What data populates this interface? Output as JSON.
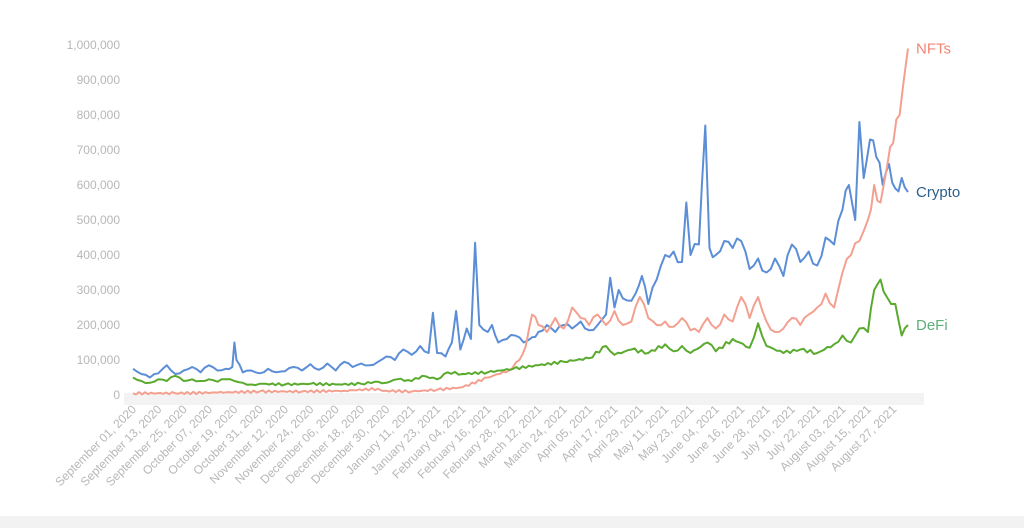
{
  "chart_data": {
    "type": "line",
    "title": "",
    "xlabel": "",
    "ylabel": "",
    "ylim": [
      0,
      1000000
    ],
    "yticks": [
      0,
      100000,
      200000,
      300000,
      400000,
      500000,
      600000,
      700000,
      800000,
      900000,
      1000000
    ],
    "ytick_labels": [
      "0",
      "100,000",
      "200,000",
      "300,000",
      "400,000",
      "500,000",
      "600,000",
      "700,000",
      "800,000",
      "900,000",
      "1,000,000"
    ],
    "x_start": "2020-09-01",
    "x_end": "2021-09-03",
    "x_tick_labels": [
      "September 01, 2020",
      "September 13, 2020",
      "September 25, 2020",
      "October 07, 2020",
      "October 19, 2020",
      "October 31, 2020",
      "November 12, 2020",
      "November 24, 2020",
      "December 06, 2020",
      "December 18, 2020",
      "December 30, 2020",
      "January 11, 2021",
      "January 23, 2021",
      "February 04, 2021",
      "February 16, 2021",
      "February 28, 2021",
      "March 12, 2021",
      "March 24, 2021",
      "April 05, 2021",
      "April 17, 2021",
      "April 29, 2021",
      "May 11, 2021",
      "May 23, 2021",
      "June 04, 2021",
      "June 16, 2021",
      "June 28, 2021",
      "July 10, 2021",
      "July 22, 2021",
      "August 03, 2021",
      "August 15, 2021",
      "August 27, 2021"
    ],
    "grid": false,
    "legend": "end-labels",
    "series": [
      {
        "name": "Crypto",
        "color": "#5b8ed6",
        "label_color": "#2c5f8a",
        "points": [
          [
            "2020-09-01",
            75000
          ],
          [
            "2020-09-05",
            60000
          ],
          [
            "2020-09-09",
            50000
          ],
          [
            "2020-09-13",
            62000
          ],
          [
            "2020-09-17",
            85000
          ],
          [
            "2020-09-21",
            60000
          ],
          [
            "2020-09-25",
            70000
          ],
          [
            "2020-09-29",
            80000
          ],
          [
            "2020-10-03",
            65000
          ],
          [
            "2020-10-07",
            85000
          ],
          [
            "2020-10-11",
            70000
          ],
          [
            "2020-10-15",
            75000
          ],
          [
            "2020-10-18",
            80000
          ],
          [
            "2020-10-19",
            150000
          ],
          [
            "2020-10-20",
            100000
          ],
          [
            "2020-10-23",
            65000
          ],
          [
            "2020-10-27",
            70000
          ],
          [
            "2020-10-31",
            62000
          ],
          [
            "2020-11-04",
            75000
          ],
          [
            "2020-11-08",
            65000
          ],
          [
            "2020-11-12",
            68000
          ],
          [
            "2020-11-16",
            80000
          ],
          [
            "2020-11-20",
            70000
          ],
          [
            "2020-11-24",
            88000
          ],
          [
            "2020-11-28",
            72000
          ],
          [
            "2020-12-02",
            90000
          ],
          [
            "2020-12-06",
            70000
          ],
          [
            "2020-12-10",
            95000
          ],
          [
            "2020-12-14",
            80000
          ],
          [
            "2020-12-18",
            90000
          ],
          [
            "2020-12-22",
            85000
          ],
          [
            "2020-12-26",
            95000
          ],
          [
            "2020-12-30",
            110000
          ],
          [
            "2021-01-03",
            100000
          ],
          [
            "2021-01-07",
            130000
          ],
          [
            "2021-01-11",
            115000
          ],
          [
            "2021-01-15",
            140000
          ],
          [
            "2021-01-19",
            120000
          ],
          [
            "2021-01-21",
            235000
          ],
          [
            "2021-01-23",
            120000
          ],
          [
            "2021-01-27",
            110000
          ],
          [
            "2021-01-30",
            150000
          ],
          [
            "2021-02-01",
            240000
          ],
          [
            "2021-02-03",
            130000
          ],
          [
            "2021-02-06",
            190000
          ],
          [
            "2021-02-08",
            160000
          ],
          [
            "2021-02-10",
            435000
          ],
          [
            "2021-02-12",
            200000
          ],
          [
            "2021-02-16",
            180000
          ],
          [
            "2021-02-18",
            200000
          ],
          [
            "2021-02-21",
            150000
          ],
          [
            "2021-02-25",
            160000
          ],
          [
            "2021-03-01",
            170000
          ],
          [
            "2021-03-05",
            150000
          ],
          [
            "2021-03-09",
            165000
          ],
          [
            "2021-03-12",
            180000
          ],
          [
            "2021-03-16",
            200000
          ],
          [
            "2021-03-20",
            180000
          ],
          [
            "2021-03-24",
            200000
          ],
          [
            "2021-03-28",
            190000
          ],
          [
            "2021-04-01",
            210000
          ],
          [
            "2021-04-05",
            185000
          ],
          [
            "2021-04-09",
            200000
          ],
          [
            "2021-04-13",
            230000
          ],
          [
            "2021-04-15",
            335000
          ],
          [
            "2021-04-17",
            250000
          ],
          [
            "2021-04-19",
            300000
          ],
          [
            "2021-04-23",
            270000
          ],
          [
            "2021-04-27",
            290000
          ],
          [
            "2021-04-30",
            340000
          ],
          [
            "2021-05-03",
            260000
          ],
          [
            "2021-05-07",
            330000
          ],
          [
            "2021-05-11",
            400000
          ],
          [
            "2021-05-15",
            410000
          ],
          [
            "2021-05-19",
            380000
          ],
          [
            "2021-05-21",
            550000
          ],
          [
            "2021-05-23",
            400000
          ],
          [
            "2021-05-27",
            430000
          ],
          [
            "2021-05-30",
            770000
          ],
          [
            "2021-06-01",
            420000
          ],
          [
            "2021-06-04",
            400000
          ],
          [
            "2021-06-08",
            440000
          ],
          [
            "2021-06-12",
            420000
          ],
          [
            "2021-06-16",
            440000
          ],
          [
            "2021-06-20",
            360000
          ],
          [
            "2021-06-24",
            390000
          ],
          [
            "2021-06-28",
            350000
          ],
          [
            "2021-07-02",
            390000
          ],
          [
            "2021-07-06",
            340000
          ],
          [
            "2021-07-10",
            430000
          ],
          [
            "2021-07-14",
            380000
          ],
          [
            "2021-07-18",
            410000
          ],
          [
            "2021-07-22",
            370000
          ],
          [
            "2021-07-26",
            450000
          ],
          [
            "2021-07-30",
            430000
          ],
          [
            "2021-08-03",
            530000
          ],
          [
            "2021-08-06",
            600000
          ],
          [
            "2021-08-09",
            500000
          ],
          [
            "2021-08-11",
            780000
          ],
          [
            "2021-08-13",
            620000
          ],
          [
            "2021-08-16",
            730000
          ],
          [
            "2021-08-19",
            680000
          ],
          [
            "2021-08-22",
            600000
          ],
          [
            "2021-08-25",
            660000
          ],
          [
            "2021-08-28",
            590000
          ],
          [
            "2021-08-31",
            620000
          ],
          [
            "2021-09-03",
            580000
          ]
        ]
      },
      {
        "name": "NFTs",
        "color": "#f4a090",
        "label_color": "#f08575",
        "points": [
          [
            "2020-09-01",
            5000
          ],
          [
            "2020-09-21",
            5000
          ],
          [
            "2020-10-11",
            7000
          ],
          [
            "2020-10-31",
            10000
          ],
          [
            "2020-11-20",
            10000
          ],
          [
            "2020-12-10",
            12000
          ],
          [
            "2020-12-26",
            18000
          ],
          [
            "2020-12-30",
            12000
          ],
          [
            "2021-01-11",
            10000
          ],
          [
            "2021-01-23",
            15000
          ],
          [
            "2021-02-04",
            22000
          ],
          [
            "2021-02-16",
            50000
          ],
          [
            "2021-02-26",
            70000
          ],
          [
            "2021-03-03",
            100000
          ],
          [
            "2021-03-06",
            140000
          ],
          [
            "2021-03-09",
            230000
          ],
          [
            "2021-03-12",
            200000
          ],
          [
            "2021-03-16",
            180000
          ],
          [
            "2021-03-20",
            220000
          ],
          [
            "2021-03-24",
            190000
          ],
          [
            "2021-03-28",
            250000
          ],
          [
            "2021-04-01",
            220000
          ],
          [
            "2021-04-05",
            200000
          ],
          [
            "2021-04-09",
            230000
          ],
          [
            "2021-04-13",
            200000
          ],
          [
            "2021-04-17",
            240000
          ],
          [
            "2021-04-21",
            200000
          ],
          [
            "2021-04-25",
            210000
          ],
          [
            "2021-04-29",
            280000
          ],
          [
            "2021-05-03",
            220000
          ],
          [
            "2021-05-07",
            200000
          ],
          [
            "2021-05-11",
            210000
          ],
          [
            "2021-05-15",
            195000
          ],
          [
            "2021-05-19",
            220000
          ],
          [
            "2021-05-23",
            185000
          ],
          [
            "2021-05-27",
            180000
          ],
          [
            "2021-05-31",
            220000
          ],
          [
            "2021-06-04",
            190000
          ],
          [
            "2021-06-08",
            230000
          ],
          [
            "2021-06-12",
            210000
          ],
          [
            "2021-06-16",
            280000
          ],
          [
            "2021-06-20",
            220000
          ],
          [
            "2021-06-24",
            280000
          ],
          [
            "2021-06-28",
            210000
          ],
          [
            "2021-07-02",
            180000
          ],
          [
            "2021-07-06",
            190000
          ],
          [
            "2021-07-10",
            220000
          ],
          [
            "2021-07-14",
            200000
          ],
          [
            "2021-07-18",
            230000
          ],
          [
            "2021-07-22",
            250000
          ],
          [
            "2021-07-26",
            290000
          ],
          [
            "2021-07-30",
            250000
          ],
          [
            "2021-08-03",
            350000
          ],
          [
            "2021-08-07",
            400000
          ],
          [
            "2021-08-11",
            440000
          ],
          [
            "2021-08-15",
            500000
          ],
          [
            "2021-08-18",
            600000
          ],
          [
            "2021-08-21",
            550000
          ],
          [
            "2021-08-24",
            650000
          ],
          [
            "2021-08-27",
            720000
          ],
          [
            "2021-08-30",
            800000
          ],
          [
            "2021-09-01",
            900000
          ],
          [
            "2021-09-03",
            990000
          ]
        ]
      },
      {
        "name": "DeFi",
        "color": "#5aaa2e",
        "label_color": "#5db07a",
        "points": [
          [
            "2020-09-01",
            50000
          ],
          [
            "2020-09-05",
            40000
          ],
          [
            "2020-09-09",
            35000
          ],
          [
            "2020-09-13",
            45000
          ],
          [
            "2020-09-17",
            40000
          ],
          [
            "2020-09-21",
            55000
          ],
          [
            "2020-09-25",
            40000
          ],
          [
            "2020-09-29",
            45000
          ],
          [
            "2020-10-03",
            40000
          ],
          [
            "2020-10-07",
            45000
          ],
          [
            "2020-10-11",
            38000
          ],
          [
            "2020-10-15",
            45000
          ],
          [
            "2020-10-19",
            40000
          ],
          [
            "2020-10-23",
            35000
          ],
          [
            "2020-10-27",
            30000
          ],
          [
            "2020-10-31",
            32000
          ],
          [
            "2020-11-12",
            30000
          ],
          [
            "2020-11-24",
            32000
          ],
          [
            "2020-12-06",
            30000
          ],
          [
            "2020-12-18",
            32000
          ],
          [
            "2020-12-26",
            38000
          ],
          [
            "2020-12-30",
            35000
          ],
          [
            "2021-01-04",
            45000
          ],
          [
            "2021-01-11",
            40000
          ],
          [
            "2021-01-16",
            55000
          ],
          [
            "2021-01-23",
            45000
          ],
          [
            "2021-01-28",
            65000
          ],
          [
            "2021-02-04",
            60000
          ],
          [
            "2021-02-16",
            65000
          ],
          [
            "2021-02-28",
            75000
          ],
          [
            "2021-03-12",
            85000
          ],
          [
            "2021-03-24",
            95000
          ],
          [
            "2021-04-05",
            105000
          ],
          [
            "2021-04-13",
            140000
          ],
          [
            "2021-04-17",
            115000
          ],
          [
            "2021-04-25",
            130000
          ],
          [
            "2021-05-03",
            120000
          ],
          [
            "2021-05-11",
            145000
          ],
          [
            "2021-05-15",
            125000
          ],
          [
            "2021-05-19",
            140000
          ],
          [
            "2021-05-23",
            120000
          ],
          [
            "2021-05-31",
            150000
          ],
          [
            "2021-06-04",
            125000
          ],
          [
            "2021-06-12",
            160000
          ],
          [
            "2021-06-20",
            135000
          ],
          [
            "2021-06-24",
            205000
          ],
          [
            "2021-06-28",
            140000
          ],
          [
            "2021-07-06",
            120000
          ],
          [
            "2021-07-14",
            130000
          ],
          [
            "2021-07-22",
            120000
          ],
          [
            "2021-07-30",
            145000
          ],
          [
            "2021-08-03",
            170000
          ],
          [
            "2021-08-07",
            150000
          ],
          [
            "2021-08-11",
            190000
          ],
          [
            "2021-08-15",
            180000
          ],
          [
            "2021-08-18",
            300000
          ],
          [
            "2021-08-21",
            330000
          ],
          [
            "2021-08-24",
            280000
          ],
          [
            "2021-08-28",
            260000
          ],
          [
            "2021-08-31",
            170000
          ],
          [
            "2021-09-03",
            200000
          ]
        ]
      }
    ]
  }
}
